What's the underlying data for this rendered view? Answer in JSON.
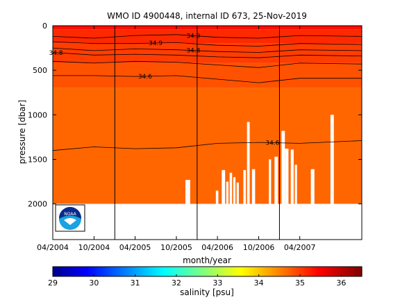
{
  "chart_data": {
    "type": "heatmap",
    "title": "WMO ID 4900448, internal ID 673, 25-Nov-2019",
    "xlabel": "month/year",
    "ylabel": "pressure [dbar]",
    "x_range": [
      "2004-04-01",
      "2008-01-01"
    ],
    "ylim": [
      0,
      2400
    ],
    "y_reversed": true,
    "x_ticks": [
      {
        "date": "2004-04-01",
        "label": "04/2004"
      },
      {
        "date": "2004-10-01",
        "label": "10/2004"
      },
      {
        "date": "2005-04-01",
        "label": "04/2005"
      },
      {
        "date": "2005-10-01",
        "label": "10/2005"
      },
      {
        "date": "2006-04-01",
        "label": "04/2006"
      },
      {
        "date": "2006-10-01",
        "label": "10/2006"
      },
      {
        "date": "2007-04-01",
        "label": "04/2007"
      }
    ],
    "y_ticks": [
      {
        "value": 0,
        "label": "0"
      },
      {
        "value": 500,
        "label": "500"
      },
      {
        "value": 1000,
        "label": "1000"
      },
      {
        "value": 1500,
        "label": "1500"
      },
      {
        "value": 2000,
        "label": "2000"
      }
    ],
    "year_separators": [
      "2005-01-01",
      "2006-01-01",
      "2007-01-01"
    ],
    "colorbar": {
      "label": "salinity [psu]",
      "range": [
        29,
        36.5
      ],
      "ticks": [
        {
          "value": 29,
          "label": "29"
        },
        {
          "value": 30,
          "label": "30"
        },
        {
          "value": 31,
          "label": "31"
        },
        {
          "value": 32,
          "label": "32"
        },
        {
          "value": 33,
          "label": "33"
        },
        {
          "value": 34,
          "label": "34"
        },
        {
          "value": 35,
          "label": "35"
        },
        {
          "value": 36,
          "label": "36"
        }
      ]
    },
    "salinity_layers": [
      {
        "top": 0,
        "bottom": 40,
        "salinity": 35.35
      },
      {
        "top": 40,
        "bottom": 200,
        "salinity": 35.15
      },
      {
        "top": 200,
        "bottom": 420,
        "salinity": 35.0
      },
      {
        "top": 420,
        "bottom": 700,
        "salinity": 34.85
      },
      {
        "top": 700,
        "bottom": 2000,
        "salinity": 34.7
      }
    ],
    "contours": [
      {
        "label": "34.9",
        "label_at": "2005-12-15",
        "points": [
          [
            "2004-04-01",
            120
          ],
          [
            "2004-10-01",
            140
          ],
          [
            "2005-04-01",
            110
          ],
          [
            "2005-10-01",
            100
          ],
          [
            "2006-04-01",
            130
          ],
          [
            "2006-10-01",
            140
          ],
          [
            "2007-04-01",
            110
          ],
          [
            "2008-01-01",
            120
          ]
        ]
      },
      {
        "label": "34.9",
        "label_at": "2005-07-01",
        "points": [
          [
            "2004-04-01",
            180
          ],
          [
            "2004-10-01",
            200
          ],
          [
            "2005-04-01",
            200
          ],
          [
            "2005-10-01",
            190
          ],
          [
            "2006-04-01",
            220
          ],
          [
            "2006-10-01",
            230
          ],
          [
            "2007-04-01",
            200
          ],
          [
            "2008-01-01",
            210
          ]
        ]
      },
      {
        "label": "34.8",
        "label_at": "2005-12-15",
        "points": [
          [
            "2004-04-01",
            250
          ],
          [
            "2004-10-01",
            280
          ],
          [
            "2005-04-01",
            260
          ],
          [
            "2005-10-01",
            270
          ],
          [
            "2006-04-01",
            290
          ],
          [
            "2006-10-01",
            300
          ],
          [
            "2007-04-01",
            270
          ],
          [
            "2008-01-01",
            280
          ]
        ]
      },
      {
        "label": "34.8",
        "label_at": "2004-04-15",
        "points": [
          [
            "2004-04-01",
            300
          ],
          [
            "2004-10-01",
            330
          ],
          [
            "2005-04-01",
            320
          ],
          [
            "2005-10-01",
            330
          ],
          [
            "2006-04-01",
            350
          ],
          [
            "2006-10-01",
            360
          ],
          [
            "2007-04-01",
            330
          ],
          [
            "2008-01-01",
            340
          ]
        ]
      },
      {
        "label": "",
        "label_at": "",
        "points": [
          [
            "2004-04-01",
            400
          ],
          [
            "2004-10-01",
            420
          ],
          [
            "2005-04-01",
            400
          ],
          [
            "2005-10-01",
            410
          ],
          [
            "2006-04-01",
            440
          ],
          [
            "2006-10-01",
            470
          ],
          [
            "2007-04-01",
            420
          ],
          [
            "2008-01-01",
            430
          ]
        ]
      },
      {
        "label": "34.6",
        "label_at": "2005-05-15",
        "points": [
          [
            "2004-04-01",
            560
          ],
          [
            "2004-10-01",
            560
          ],
          [
            "2005-04-01",
            570
          ],
          [
            "2005-10-01",
            560
          ],
          [
            "2006-04-01",
            600
          ],
          [
            "2006-10-01",
            640
          ],
          [
            "2007-04-01",
            590
          ],
          [
            "2008-01-01",
            590
          ]
        ]
      },
      {
        "label": "34.6",
        "label_at": "2006-12-01",
        "points": [
          [
            "2004-04-01",
            1400
          ],
          [
            "2004-10-01",
            1360
          ],
          [
            "2005-04-01",
            1380
          ],
          [
            "2005-10-01",
            1370
          ],
          [
            "2006-04-01",
            1320
          ],
          [
            "2006-10-01",
            1310
          ],
          [
            "2007-04-01",
            1320
          ],
          [
            "2008-01-01",
            1290
          ]
        ]
      }
    ],
    "missing_columns": [
      {
        "start": "2005-11-10",
        "end": "2005-12-01",
        "from": 1730
      },
      {
        "start": "2006-03-25",
        "end": "2006-04-05",
        "from": 1850
      },
      {
        "start": "2006-04-20",
        "end": "2006-05-05",
        "from": 1620
      },
      {
        "start": "2006-05-10",
        "end": "2006-05-20",
        "from": 1750
      },
      {
        "start": "2006-05-25",
        "end": "2006-06-05",
        "from": 1650
      },
      {
        "start": "2006-06-10",
        "end": "2006-06-20",
        "from": 1700
      },
      {
        "start": "2006-06-25",
        "end": "2006-07-05",
        "from": 1760
      },
      {
        "start": "2006-07-25",
        "end": "2006-08-05",
        "from": 1620
      },
      {
        "start": "2006-08-10",
        "end": "2006-08-22",
        "from": 1080
      },
      {
        "start": "2006-09-01",
        "end": "2006-09-15",
        "from": 1610
      },
      {
        "start": "2006-09-15",
        "end": "2006-10-10",
        "from": 2000
      },
      {
        "start": "2006-11-15",
        "end": "2006-11-25",
        "from": 1500
      },
      {
        "start": "2006-12-10",
        "end": "2006-12-25",
        "from": 1470
      },
      {
        "start": "2007-01-10",
        "end": "2007-01-25",
        "from": 1180
      },
      {
        "start": "2007-01-25",
        "end": "2007-02-10",
        "from": 1380
      },
      {
        "start": "2007-02-20",
        "end": "2007-03-05",
        "from": 1390
      },
      {
        "start": "2007-03-10",
        "end": "2007-03-20",
        "from": 1560
      },
      {
        "start": "2007-03-20",
        "end": "2007-05-15",
        "from": 2000
      },
      {
        "start": "2007-05-20",
        "end": "2007-06-05",
        "from": 1610
      },
      {
        "start": "2007-06-05",
        "end": "2007-08-15",
        "from": 2000
      },
      {
        "start": "2007-08-15",
        "end": "2007-08-30",
        "from": 1000
      },
      {
        "start": "2007-08-30",
        "end": "2007-09-15",
        "from": 2000
      }
    ],
    "grid": false,
    "logo": {
      "text": "NOAA"
    }
  }
}
